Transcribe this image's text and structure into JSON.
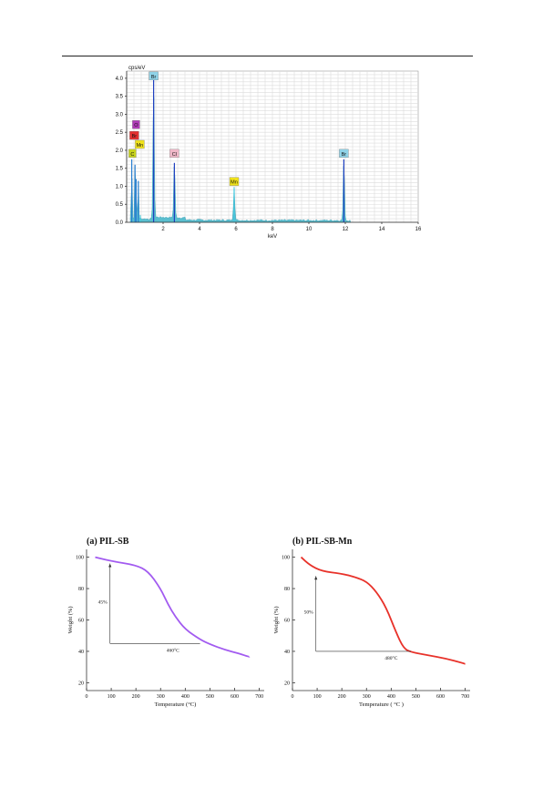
{
  "chart_data": [
    {
      "type": "line",
      "title": "",
      "xlabel": "keV",
      "ylabel": "cps/eV",
      "xlim": [
        0,
        16
      ],
      "ylim": [
        0,
        4.2
      ],
      "grid": true,
      "x_ticks": [
        2,
        4,
        6,
        8,
        10,
        12,
        14,
        16
      ],
      "y_ticks": [
        0.0,
        0.5,
        1.0,
        1.5,
        2.0,
        2.5,
        3.0,
        3.5,
        4.0
      ],
      "peaks": [
        {
          "element": "C",
          "x": 0.28,
          "y": 1.75,
          "color": "#c8d41e"
        },
        {
          "element": "O",
          "x": 0.52,
          "y": 1.2,
          "color": "#b03cb8"
        },
        {
          "element": "Br",
          "x": 0.46,
          "y": 1.6,
          "color": "#e33030"
        },
        {
          "element": "Mn",
          "x": 0.64,
          "y": 1.15,
          "color": "#f0e21a"
        },
        {
          "element": "Br",
          "x": 1.48,
          "y": 3.95,
          "color": "#8fd3e8"
        },
        {
          "element": "Cl",
          "x": 2.62,
          "y": 1.65,
          "color": "#f0b8c8"
        },
        {
          "element": "Mn",
          "x": 5.9,
          "y": 0.95,
          "color": "#f0e21a"
        },
        {
          "element": "Br",
          "x": 11.92,
          "y": 1.75,
          "color": "#8fd3e8"
        }
      ],
      "labels": [
        {
          "text": "Br",
          "x": 1.48,
          "y": 3.95,
          "color": "#8fd3e8"
        },
        {
          "text": "O",
          "x": 0.52,
          "y": 2.6,
          "color": "#b03cb8"
        },
        {
          "text": "Br",
          "x": 0.42,
          "y": 2.3,
          "color": "#e33030"
        },
        {
          "text": "Mn",
          "x": 0.72,
          "y": 2.05,
          "color": "#f0e21a"
        },
        {
          "text": "C",
          "x": 0.32,
          "y": 1.8,
          "color": "#c8d41e"
        },
        {
          "text": "Cl",
          "x": 2.62,
          "y": 1.8,
          "color": "#f0b8c8"
        },
        {
          "text": "Mn",
          "x": 5.9,
          "y": 1.02,
          "color": "#f0e21a"
        },
        {
          "text": "Br",
          "x": 11.92,
          "y": 1.8,
          "color": "#8fd3e8"
        }
      ]
    },
    {
      "type": "line",
      "title": "(a) PIL-SB",
      "xlabel": "Temperature (°C)",
      "ylabel": "Weight (%)",
      "xlim": [
        0,
        720
      ],
      "ylim": [
        15,
        105
      ],
      "x_ticks": [
        0,
        100,
        200,
        300,
        400,
        500,
        600,
        700
      ],
      "y_ticks": [
        20,
        40,
        60,
        80,
        100
      ],
      "color": "#a25bf0",
      "x": [
        35,
        100,
        200,
        250,
        300,
        330,
        360,
        400,
        460,
        500,
        560,
        620,
        660
      ],
      "y": [
        100,
        97.5,
        95,
        91,
        80,
        70,
        62,
        54,
        47.5,
        44.5,
        41,
        38.5,
        36.5
      ],
      "annotations": {
        "percent": "45%",
        "temperature": "460°C"
      }
    },
    {
      "type": "line",
      "title": "(b) PIL-SB-Mn",
      "xlabel": "Temperature ( °C )",
      "ylabel": "Weight (%)",
      "xlim": [
        0,
        720
      ],
      "ylim": [
        15,
        105
      ],
      "x_ticks": [
        0,
        100,
        200,
        300,
        400,
        500,
        600,
        700
      ],
      "y_ticks": [
        20,
        40,
        60,
        80,
        100
      ],
      "color": "#e8322a",
      "x": [
        35,
        70,
        120,
        200,
        260,
        300,
        340,
        380,
        420,
        450,
        480,
        550,
        620,
        690,
        700
      ],
      "y": [
        100,
        95,
        91,
        89.5,
        87,
        84.5,
        78,
        68,
        52,
        42,
        39.5,
        37.5,
        35.5,
        32.5,
        32
      ],
      "annotations": {
        "percent": "50%",
        "temperature": "480°C"
      }
    }
  ]
}
